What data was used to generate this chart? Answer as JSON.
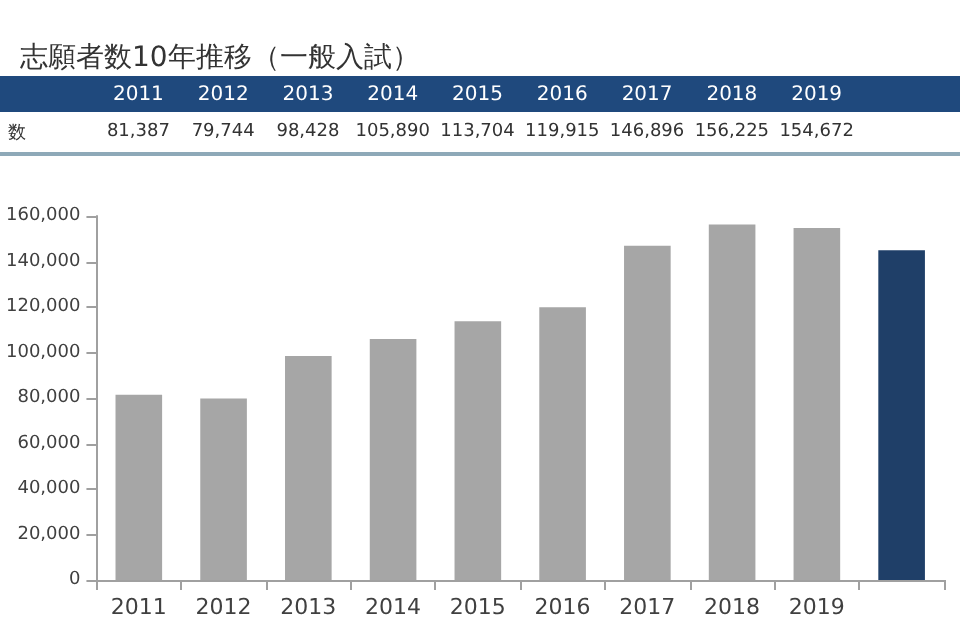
{
  "chart_data": {
    "type": "bar",
    "title": "志願者数10年推移（一般入試）",
    "categories": [
      "2011",
      "2012",
      "2013",
      "2014",
      "2015",
      "2016",
      "2017",
      "2018",
      "2019",
      null
    ],
    "values": [
      81387,
      79744,
      98428,
      105890,
      113704,
      119915,
      146896,
      156225,
      154672,
      145000
    ],
    "value_labels": [
      "81,387",
      "79,744",
      "98,428",
      "105,890",
      "113,704",
      "119,915",
      "146,896",
      "156,225",
      "154,672",
      null
    ],
    "colors": [
      "#a6a6a6",
      "#a6a6a6",
      "#a6a6a6",
      "#a6a6a6",
      "#a6a6a6",
      "#a6a6a6",
      "#a6a6a6",
      "#a6a6a6",
      "#a6a6a6",
      "#1f3f68"
    ],
    "annotations": [
      "数"
    ],
    "ylim": [
      0,
      160000
    ],
    "yticks": [
      0,
      {
        "value": 20000,
        "label": "20,000"
      },
      {
        "value": 40000,
        "label": "40,000"
      },
      {
        "value": 60000,
        "label": "60,000"
      },
      {
        "value": 80000,
        "label": "80,000"
      },
      {
        "value": 100000,
        "label": "100,000"
      },
      {
        "value": 120000,
        "label": "120,000"
      },
      {
        "value": 140000,
        "label": "140,000"
      },
      {
        "value": 160000,
        "label": "160,000"
      }
    ],
    "grid": false
  }
}
